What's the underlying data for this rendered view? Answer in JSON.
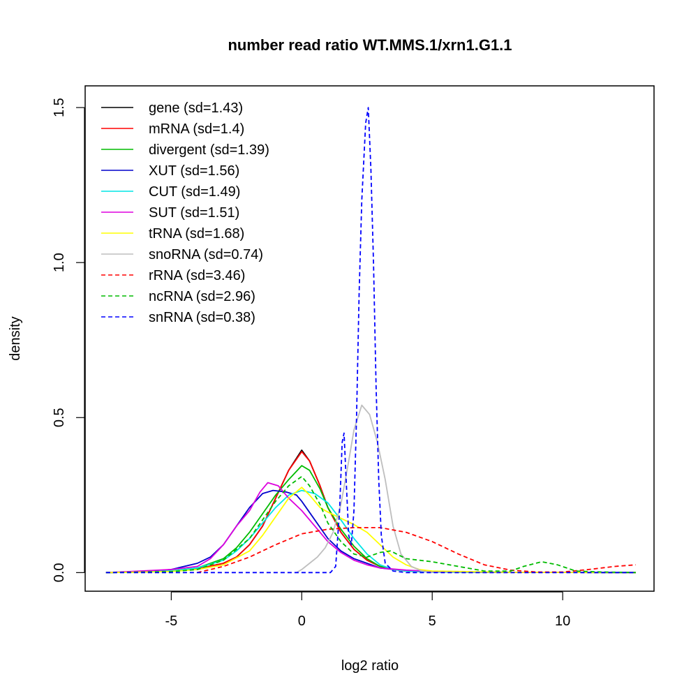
{
  "chart_data": {
    "type": "line",
    "title": "number read ratio WT.MMS.1/xrn1.G1.1",
    "xlabel": "log2 ratio",
    "ylabel": "density",
    "xlim": [
      -8.3,
      13.5
    ],
    "ylim": [
      -0.06,
      1.57
    ],
    "xticks": [
      -5,
      0,
      5,
      10
    ],
    "yticks": [
      0.0,
      0.5,
      1.0,
      1.5
    ],
    "xtick_labels": [
      "-5",
      "0",
      "5",
      "10"
    ],
    "ytick_labels": [
      "0.0",
      "0.5",
      "1.0",
      "1.5"
    ],
    "legend_position": "top-left",
    "series": [
      {
        "name": "gene",
        "label": "gene (sd=1.43)",
        "color": "#000000",
        "dash": false,
        "points": [
          [
            -7.5,
            0
          ],
          [
            -6,
            0.002
          ],
          [
            -5,
            0.005
          ],
          [
            -4,
            0.012
          ],
          [
            -3,
            0.03
          ],
          [
            -2.5,
            0.05
          ],
          [
            -2,
            0.09
          ],
          [
            -1.5,
            0.15
          ],
          [
            -1,
            0.24
          ],
          [
            -0.5,
            0.33
          ],
          [
            0,
            0.395
          ],
          [
            0.3,
            0.36
          ],
          [
            0.7,
            0.28
          ],
          [
            1,
            0.21
          ],
          [
            1.5,
            0.13
          ],
          [
            2,
            0.075
          ],
          [
            2.5,
            0.04
          ],
          [
            3,
            0.02
          ],
          [
            3.5,
            0.01
          ],
          [
            4,
            0.005
          ],
          [
            5,
            0.002
          ],
          [
            8,
            0.001
          ],
          [
            12.8,
            0
          ]
        ]
      },
      {
        "name": "mRNA",
        "label": "mRNA (sd=1.4)",
        "color": "#ff0000",
        "dash": false,
        "points": [
          [
            -7.5,
            0
          ],
          [
            -6,
            0.002
          ],
          [
            -5,
            0.005
          ],
          [
            -4,
            0.012
          ],
          [
            -3,
            0.03
          ],
          [
            -2.5,
            0.05
          ],
          [
            -2,
            0.09
          ],
          [
            -1.5,
            0.15
          ],
          [
            -1,
            0.24
          ],
          [
            -0.5,
            0.33
          ],
          [
            0,
            0.39
          ],
          [
            0.3,
            0.36
          ],
          [
            0.7,
            0.28
          ],
          [
            1,
            0.21
          ],
          [
            1.5,
            0.13
          ],
          [
            2,
            0.075
          ],
          [
            2.5,
            0.04
          ],
          [
            3,
            0.02
          ],
          [
            3.5,
            0.01
          ],
          [
            4,
            0.005
          ],
          [
            5,
            0.002
          ],
          [
            8,
            0.001
          ],
          [
            12.8,
            0
          ]
        ]
      },
      {
        "name": "divergent",
        "label": "divergent (sd=1.39)",
        "color": "#00bb00",
        "dash": false,
        "points": [
          [
            -7.5,
            0
          ],
          [
            -6,
            0.002
          ],
          [
            -5,
            0.006
          ],
          [
            -4,
            0.015
          ],
          [
            -3,
            0.045
          ],
          [
            -2.5,
            0.08
          ],
          [
            -2,
            0.13
          ],
          [
            -1.5,
            0.19
          ],
          [
            -1,
            0.25
          ],
          [
            -0.5,
            0.3
          ],
          [
            0,
            0.345
          ],
          [
            0.3,
            0.33
          ],
          [
            0.7,
            0.27
          ],
          [
            1,
            0.21
          ],
          [
            1.5,
            0.14
          ],
          [
            2,
            0.085
          ],
          [
            2.5,
            0.045
          ],
          [
            3,
            0.02
          ],
          [
            3.5,
            0.01
          ],
          [
            4,
            0.005
          ],
          [
            5,
            0.002
          ],
          [
            8,
            0.001
          ],
          [
            12.8,
            0
          ]
        ]
      },
      {
        "name": "XUT",
        "label": "XUT (sd=1.56)",
        "color": "#0000cc",
        "dash": false,
        "points": [
          [
            -7.5,
            0
          ],
          [
            -6,
            0.003
          ],
          [
            -5,
            0.01
          ],
          [
            -4,
            0.03
          ],
          [
            -3.5,
            0.05
          ],
          [
            -3,
            0.09
          ],
          [
            -2.5,
            0.15
          ],
          [
            -2,
            0.21
          ],
          [
            -1.5,
            0.255
          ],
          [
            -1.1,
            0.265
          ],
          [
            -0.6,
            0.26
          ],
          [
            -0.2,
            0.25
          ],
          [
            0,
            0.23
          ],
          [
            0.5,
            0.17
          ],
          [
            1,
            0.11
          ],
          [
            1.5,
            0.07
          ],
          [
            2,
            0.045
          ],
          [
            2.5,
            0.03
          ],
          [
            3,
            0.015
          ],
          [
            4,
            0.006
          ],
          [
            5,
            0.003
          ],
          [
            8,
            0.001
          ],
          [
            12.8,
            0
          ]
        ]
      },
      {
        "name": "CUT",
        "label": "CUT (sd=1.49)",
        "color": "#00e5e5",
        "dash": false,
        "points": [
          [
            -7.5,
            0
          ],
          [
            -6,
            0.002
          ],
          [
            -5,
            0.006
          ],
          [
            -4,
            0.015
          ],
          [
            -3,
            0.04
          ],
          [
            -2.5,
            0.07
          ],
          [
            -2,
            0.11
          ],
          [
            -1.5,
            0.16
          ],
          [
            -1,
            0.21
          ],
          [
            -0.5,
            0.25
          ],
          [
            0,
            0.265
          ],
          [
            0.5,
            0.255
          ],
          [
            1,
            0.225
          ],
          [
            1.5,
            0.17
          ],
          [
            2,
            0.11
          ],
          [
            2.5,
            0.06
          ],
          [
            3,
            0.025
          ],
          [
            3.5,
            0.01
          ],
          [
            4,
            0.005
          ],
          [
            5,
            0.002
          ],
          [
            8,
            0.001
          ],
          [
            12.8,
            0
          ]
        ]
      },
      {
        "name": "SUT",
        "label": "SUT (sd=1.51)",
        "color": "#dd00dd",
        "dash": false,
        "points": [
          [
            -7.5,
            0
          ],
          [
            -6.5,
            0.004
          ],
          [
            -5,
            0.01
          ],
          [
            -4,
            0.02
          ],
          [
            -3.5,
            0.045
          ],
          [
            -3,
            0.09
          ],
          [
            -2.5,
            0.15
          ],
          [
            -2,
            0.2
          ],
          [
            -1.6,
            0.26
          ],
          [
            -1.3,
            0.29
          ],
          [
            -0.9,
            0.28
          ],
          [
            -0.5,
            0.24
          ],
          [
            0,
            0.2
          ],
          [
            0.5,
            0.15
          ],
          [
            1,
            0.1
          ],
          [
            1.5,
            0.065
          ],
          [
            2,
            0.04
          ],
          [
            2.5,
            0.025
          ],
          [
            3,
            0.015
          ],
          [
            4,
            0.008
          ],
          [
            5,
            0.004
          ],
          [
            8,
            0.001
          ],
          [
            12.8,
            0
          ]
        ]
      },
      {
        "name": "tRNA",
        "label": "tRNA (sd=1.68)",
        "color": "#ffff00",
        "dash": false,
        "points": [
          [
            -7.5,
            0
          ],
          [
            -6,
            0.002
          ],
          [
            -5,
            0.004
          ],
          [
            -4,
            0.01
          ],
          [
            -3,
            0.025
          ],
          [
            -2,
            0.07
          ],
          [
            -1.5,
            0.12
          ],
          [
            -1,
            0.18
          ],
          [
            -0.5,
            0.24
          ],
          [
            0,
            0.275
          ],
          [
            0.3,
            0.25
          ],
          [
            0.7,
            0.21
          ],
          [
            1,
            0.195
          ],
          [
            1.5,
            0.175
          ],
          [
            2,
            0.155
          ],
          [
            2.5,
            0.13
          ],
          [
            3,
            0.09
          ],
          [
            3.5,
            0.05
          ],
          [
            4,
            0.025
          ],
          [
            4.5,
            0.01
          ],
          [
            5,
            0.005
          ],
          [
            8,
            0.001
          ],
          [
            12.8,
            0
          ]
        ]
      },
      {
        "name": "snoRNA",
        "label": "snoRNA (sd=0.74)",
        "color": "#bebebe",
        "dash": false,
        "points": [
          [
            -0.2,
            0
          ],
          [
            0,
            0.01
          ],
          [
            0.3,
            0.03
          ],
          [
            0.6,
            0.05
          ],
          [
            0.9,
            0.08
          ],
          [
            1.2,
            0.13
          ],
          [
            1.5,
            0.22
          ],
          [
            1.8,
            0.36
          ],
          [
            2,
            0.46
          ],
          [
            2.3,
            0.54
          ],
          [
            2.6,
            0.51
          ],
          [
            2.9,
            0.42
          ],
          [
            3.2,
            0.3
          ],
          [
            3.5,
            0.15
          ],
          [
            3.8,
            0.06
          ],
          [
            4.2,
            0.02
          ],
          [
            4.6,
            0.005
          ],
          [
            5,
            0
          ]
        ]
      },
      {
        "name": "rRNA",
        "label": "rRNA (sd=3.46)",
        "color": "#ff0000",
        "dash": true,
        "points": [
          [
            -4,
            0
          ],
          [
            -3,
            0.02
          ],
          [
            -2,
            0.05
          ],
          [
            -1,
            0.09
          ],
          [
            0,
            0.125
          ],
          [
            1,
            0.14
          ],
          [
            2,
            0.145
          ],
          [
            3,
            0.145
          ],
          [
            4,
            0.13
          ],
          [
            5,
            0.1
          ],
          [
            6,
            0.06
          ],
          [
            7,
            0.025
          ],
          [
            8,
            0.008
          ],
          [
            9,
            0.002
          ],
          [
            10,
            0.002
          ],
          [
            11,
            0.01
          ],
          [
            12,
            0.02
          ],
          [
            12.8,
            0.025
          ]
        ]
      },
      {
        "name": "ncRNA",
        "label": "ncRNA (sd=2.96)",
        "color": "#00bb00",
        "dash": true,
        "points": [
          [
            -7.5,
            0
          ],
          [
            -5,
            0.003
          ],
          [
            -4,
            0.01
          ],
          [
            -3,
            0.04
          ],
          [
            -2,
            0.11
          ],
          [
            -1.5,
            0.17
          ],
          [
            -1,
            0.23
          ],
          [
            -0.5,
            0.28
          ],
          [
            0,
            0.31
          ],
          [
            0.3,
            0.28
          ],
          [
            0.7,
            0.22
          ],
          [
            1,
            0.16
          ],
          [
            1.5,
            0.1
          ],
          [
            2,
            0.06
          ],
          [
            2.5,
            0.05
          ],
          [
            3,
            0.065
          ],
          [
            3.4,
            0.07
          ],
          [
            4,
            0.045
          ],
          [
            5,
            0.035
          ],
          [
            6,
            0.02
          ],
          [
            7,
            0.005
          ],
          [
            8,
            0.005
          ],
          [
            8.5,
            0.02
          ],
          [
            9.2,
            0.035
          ],
          [
            9.8,
            0.025
          ],
          [
            10.5,
            0.005
          ],
          [
            11.5,
            0.002
          ],
          [
            12.8,
            0
          ]
        ]
      },
      {
        "name": "snRNA",
        "label": "snRNA (sd=0.38)",
        "color": "#0000ff",
        "dash": true,
        "points": [
          [
            -7.5,
            0
          ],
          [
            1.1,
            0
          ],
          [
            1.3,
            0.02
          ],
          [
            1.45,
            0.2
          ],
          [
            1.55,
            0.42
          ],
          [
            1.62,
            0.45
          ],
          [
            1.7,
            0.3
          ],
          [
            1.8,
            0.12
          ],
          [
            1.9,
            0.09
          ],
          [
            2.0,
            0.2
          ],
          [
            2.1,
            0.5
          ],
          [
            2.2,
            0.9
          ],
          [
            2.3,
            1.2
          ],
          [
            2.45,
            1.45
          ],
          [
            2.55,
            1.5
          ],
          [
            2.65,
            1.3
          ],
          [
            2.75,
            1.0
          ],
          [
            2.85,
            0.6
          ],
          [
            2.95,
            0.3
          ],
          [
            3.05,
            0.12
          ],
          [
            3.2,
            0.03
          ],
          [
            3.5,
            0.005
          ],
          [
            4,
            0
          ],
          [
            12.8,
            0
          ]
        ]
      }
    ]
  }
}
